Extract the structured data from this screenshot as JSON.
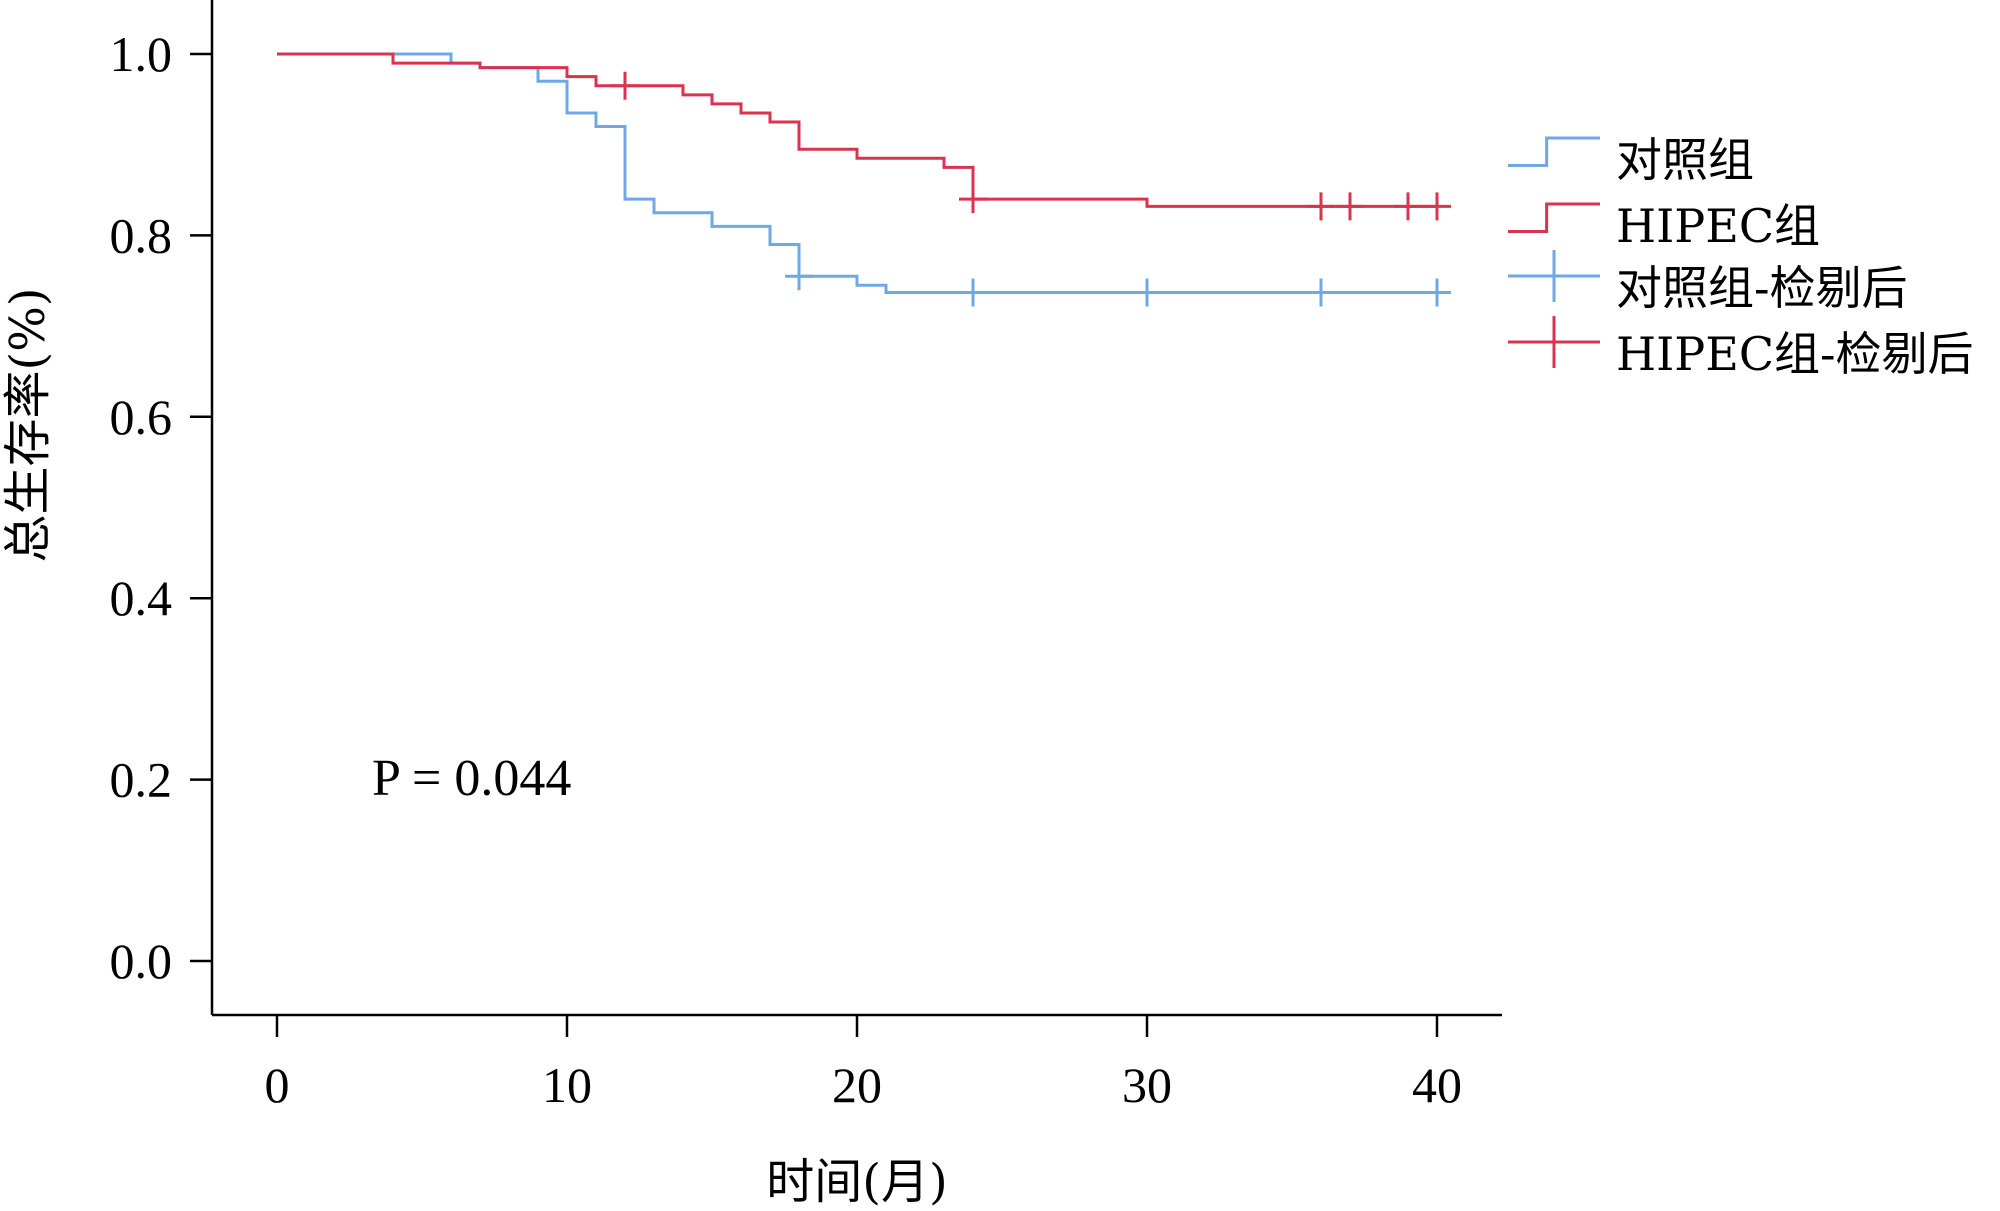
{
  "chart_data": {
    "type": "line",
    "subtype": "kaplan-meier-step",
    "xlabel": "时间(月)",
    "ylabel": "总生存率(%)",
    "xlim": [
      0,
      40
    ],
    "ylim": [
      0.0,
      1.0
    ],
    "xticks": [
      "0",
      "10",
      "20",
      "30",
      "40"
    ],
    "yticks": [
      "0.0",
      "0.2",
      "0.4",
      "0.6",
      "0.8",
      "1.0"
    ],
    "grid": false,
    "legend_position": "right",
    "annotation": "P = 0.044",
    "series": [
      {
        "name": "对照组",
        "color": "#6fa8e6",
        "steps": [
          [
            0,
            1.0
          ],
          [
            6,
            0.99
          ],
          [
            7,
            0.985
          ],
          [
            9,
            0.97
          ],
          [
            10,
            0.935
          ],
          [
            11,
            0.92
          ],
          [
            12,
            0.84
          ],
          [
            13,
            0.825
          ],
          [
            15,
            0.81
          ],
          [
            17,
            0.79
          ],
          [
            18,
            0.755
          ],
          [
            20,
            0.745
          ],
          [
            21,
            0.737
          ],
          [
            40,
            0.737
          ]
        ],
        "censored": [
          18,
          24,
          30,
          36,
          40
        ]
      },
      {
        "name": "HIPEC组",
        "color": "#d9344f",
        "steps": [
          [
            0,
            1.0
          ],
          [
            4,
            0.99
          ],
          [
            7,
            0.985
          ],
          [
            10,
            0.975
          ],
          [
            11,
            0.965
          ],
          [
            14,
            0.955
          ],
          [
            15,
            0.945
          ],
          [
            16,
            0.935
          ],
          [
            17,
            0.925
          ],
          [
            18,
            0.895
          ],
          [
            20,
            0.885
          ],
          [
            23,
            0.875
          ],
          [
            24,
            0.84
          ],
          [
            30,
            0.832
          ],
          [
            40,
            0.832
          ]
        ],
        "censored": [
          12,
          24,
          36,
          37,
          39,
          40
        ]
      }
    ],
    "legend": [
      {
        "label": "对照组",
        "color": "#6fa8e6",
        "symbol": "step"
      },
      {
        "label": "HIPEC组",
        "color": "#d9344f",
        "symbol": "step"
      },
      {
        "label": "对照组-检剔后",
        "color": "#6fa8e6",
        "symbol": "cross"
      },
      {
        "label": "HIPEC组-检剔后",
        "color": "#d9344f",
        "symbol": "cross"
      }
    ]
  }
}
